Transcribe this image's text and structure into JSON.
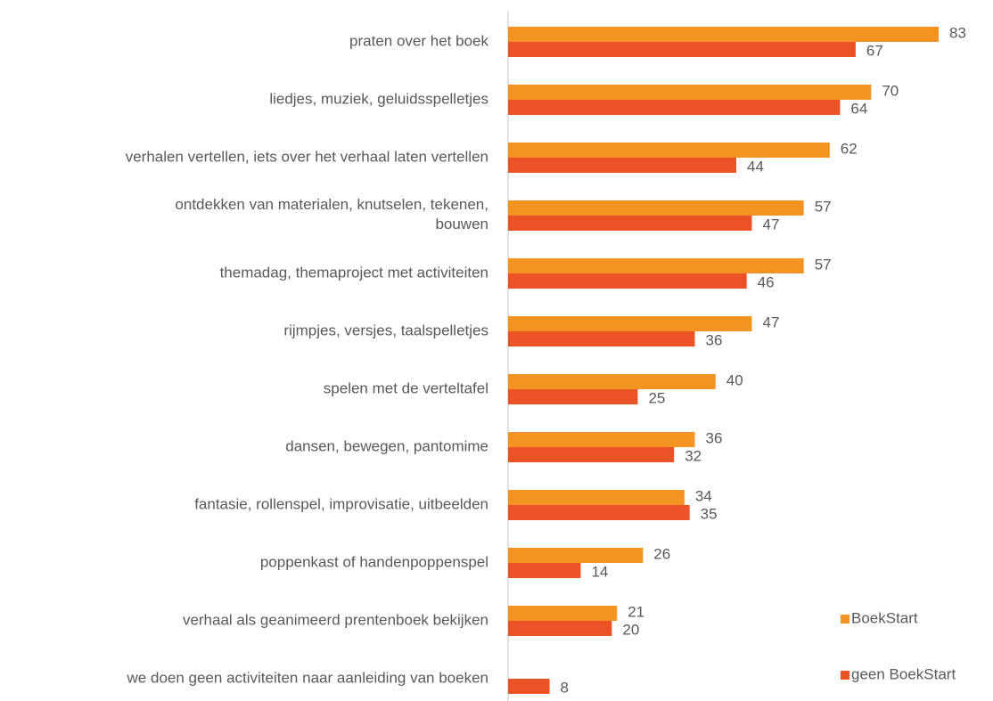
{
  "chart_data": {
    "type": "bar",
    "orientation": "horizontal",
    "categories": [
      "praten over het boek",
      "liedjes, muziek, geluidsspelletjes",
      "verhalen vertellen, iets over het verhaal laten vertellen",
      "ontdekken van materialen, knutselen, tekenen,\nbouwen",
      "themadag, themaproject met activiteiten",
      "rijmpjes, versjes, taalspelletjes",
      "spelen met de verteltafel",
      "dansen, bewegen, pantomime",
      "fantasie, rollenspel, improvisatie, uitbeelden",
      "poppenkast of handenpoppenspel",
      "verhaal als geanimeerd prentenboek bekijken",
      "we doen geen activiteiten naar aanleiding van boeken"
    ],
    "series": [
      {
        "name": "BoekStart",
        "color": "#f39321",
        "values": [
          83,
          70,
          62,
          57,
          57,
          47,
          40,
          36,
          34,
          26,
          21,
          null
        ]
      },
      {
        "name": "geen BoekStart",
        "color": "#eb5326",
        "values": [
          67,
          64,
          44,
          47,
          46,
          36,
          25,
          32,
          35,
          14,
          20,
          8
        ]
      }
    ],
    "legend": "right"
  }
}
